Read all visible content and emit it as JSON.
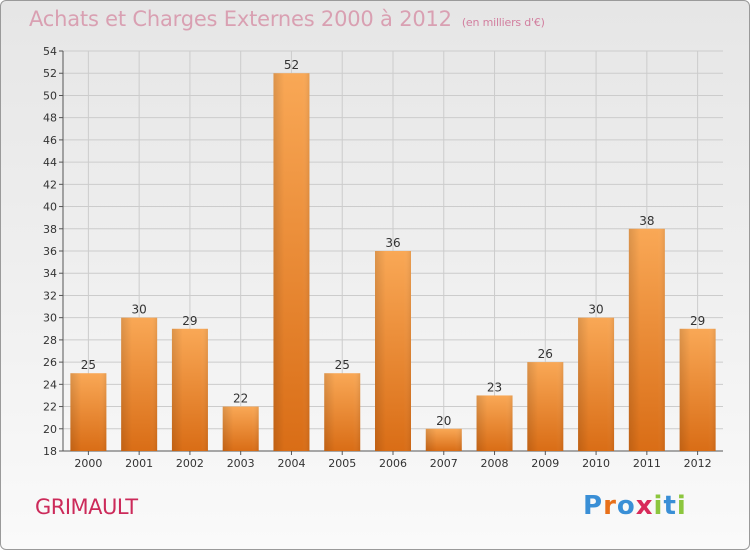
{
  "header": {
    "title": "Achats et Charges Externes 2000 à 2012",
    "subtitle": "(en milliers d'€)"
  },
  "footer": {
    "commune": "GRIMAULT",
    "brand": "Proxiti"
  },
  "colors": {
    "bar_light": "#f7a85a",
    "bar_dark": "#d9701a",
    "grid": "#cccccc",
    "axis": "#555555",
    "title": "#d9a0b2",
    "commune": "#cc2a5a"
  },
  "chart_data": {
    "type": "bar",
    "categories": [
      "2000",
      "2001",
      "2002",
      "2003",
      "2004",
      "2005",
      "2006",
      "2007",
      "2008",
      "2009",
      "2010",
      "2011",
      "2012"
    ],
    "values": [
      25,
      30,
      29,
      22,
      52,
      25,
      36,
      20,
      23,
      26,
      30,
      38,
      29
    ],
    "title": "Achats et Charges Externes 2000 à 2012",
    "ylim": [
      18,
      54
    ],
    "yticks": [
      18,
      20,
      22,
      24,
      26,
      28,
      30,
      32,
      34,
      36,
      38,
      40,
      42,
      44,
      46,
      48,
      50,
      52,
      54
    ],
    "grid": true,
    "data_labels": true
  }
}
